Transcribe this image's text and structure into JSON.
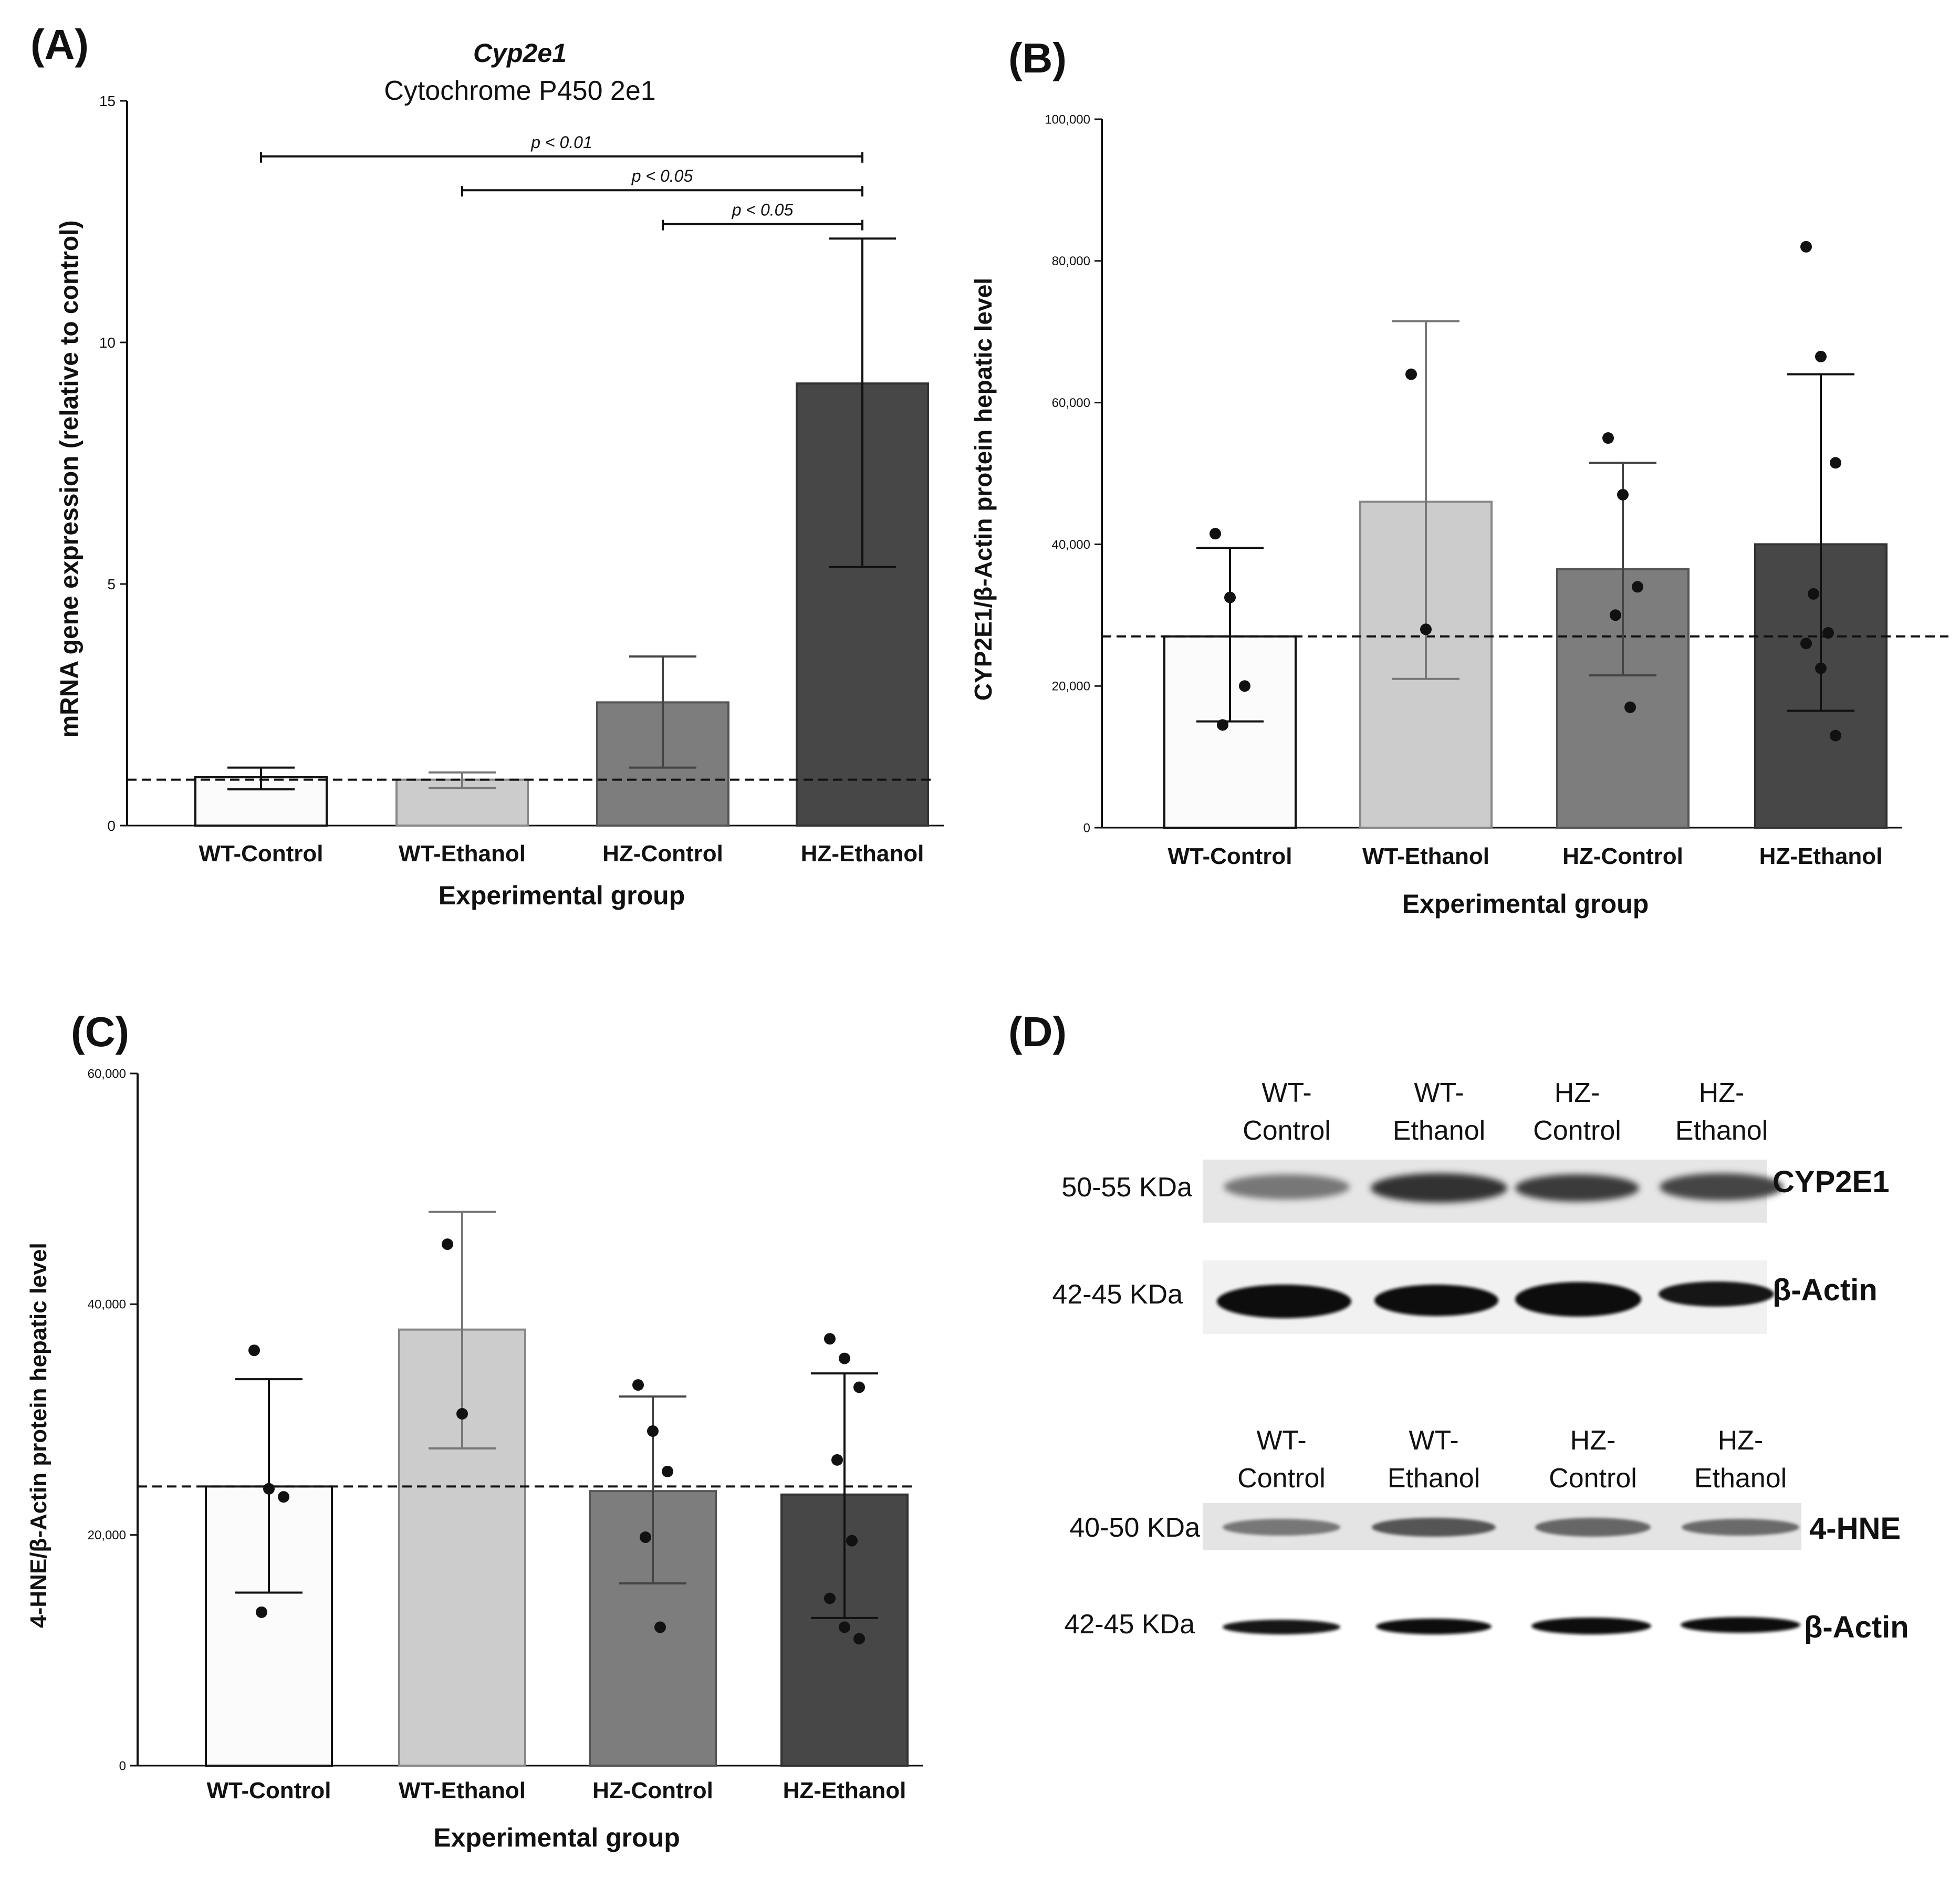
{
  "panels": {
    "A": {
      "label": "(A)"
    },
    "B": {
      "label": "(B)"
    },
    "C": {
      "label": "(C)"
    },
    "D": {
      "label": "(D)"
    }
  },
  "colors": {
    "wt_control": "#fbfbfb",
    "wt_ethanol": "#cccccc",
    "hz_control": "#7d7d7d",
    "hz_ethanol": "#474747",
    "axis": "#111111"
  },
  "chart_data": [
    {
      "id": "A",
      "type": "bar",
      "title_italic": "Cyp2e1",
      "title": "Cytochrome P450 2e1",
      "xlabel": "Experimental group",
      "ylabel": "mRNA gene expression (relative to control)",
      "categories": [
        "WT-Control",
        "WT-Ethanol",
        "HZ-Control",
        "HZ-Ethanol"
      ],
      "values": [
        1.0,
        0.95,
        2.55,
        9.15
      ],
      "err_low": [
        0.75,
        0.78,
        1.2,
        5.35
      ],
      "err_high": [
        1.2,
        1.1,
        3.5,
        12.15
      ],
      "ylim": [
        0,
        15
      ],
      "yticks": [
        0,
        5,
        10,
        15
      ],
      "ytick_labels": [
        "0",
        "5",
        "10",
        "15"
      ],
      "reference_line": 0.95,
      "significance": [
        {
          "from": 0,
          "to": 3,
          "y": 13.85,
          "label": "p < 0.01"
        },
        {
          "from": 1,
          "to": 3,
          "y": 13.15,
          "label": "p < 0.05"
        },
        {
          "from": 2,
          "to": 3,
          "y": 12.45,
          "label": "p < 0.05"
        }
      ]
    },
    {
      "id": "B",
      "type": "bar",
      "xlabel": "Experimental group",
      "ylabel": "CYP2E1/β-Actin protein hepatic level",
      "categories": [
        "WT-Control",
        "WT-Ethanol",
        "HZ-Control",
        "HZ-Ethanol"
      ],
      "values": [
        27000,
        46000,
        36500,
        40000
      ],
      "err_low": [
        15000,
        21000,
        21500,
        16500
      ],
      "err_high": [
        39500,
        71500,
        51500,
        64000
      ],
      "points": [
        [
          41500,
          32500,
          20000,
          14500
        ],
        [
          64000,
          28000
        ],
        [
          55000,
          47000,
          34000,
          30000,
          17000
        ],
        [
          82000,
          66500,
          51500,
          33000,
          27500,
          26000,
          22500,
          13000
        ]
      ],
      "ylim": [
        0,
        100000
      ],
      "yticks": [
        0,
        20000,
        40000,
        60000,
        80000,
        100000
      ],
      "ytick_labels": [
        "0",
        "20,000",
        "40,000",
        "60,000",
        "80,000",
        "100,000"
      ],
      "reference_line": 27000
    },
    {
      "id": "C",
      "type": "bar",
      "xlabel": "Experimental group",
      "ylabel": "4-HNE/β-Actin protein hepatic level",
      "categories": [
        "WT-Control",
        "WT-Ethanol",
        "HZ-Control",
        "HZ-Ethanol"
      ],
      "values": [
        24200,
        37800,
        23800,
        23500
      ],
      "err_low": [
        15000,
        27500,
        15800,
        12800
      ],
      "err_high": [
        33500,
        48000,
        32000,
        34000
      ],
      "points": [
        [
          36000,
          24000,
          23300,
          13300
        ],
        [
          45200,
          30500
        ],
        [
          33000,
          29000,
          25500,
          19800,
          12000
        ],
        [
          37000,
          35300,
          32800,
          26500,
          19500,
          14500,
          12000,
          11000
        ]
      ],
      "ylim": [
        0,
        60000
      ],
      "yticks": [
        0,
        20000,
        40000,
        60000
      ],
      "ytick_labels": [
        "0",
        "20,000",
        "40,000",
        "60,000"
      ],
      "reference_line": 24200
    }
  ],
  "blot": {
    "upper": {
      "lanes": [
        [
          "WT-",
          "Control"
        ],
        [
          "WT-",
          "Ethanol"
        ],
        [
          "HZ-",
          "Control"
        ],
        [
          "HZ-",
          "Ethanol"
        ]
      ],
      "rows": [
        {
          "size": "50-55 KDa",
          "protein": "CYP2E1"
        },
        {
          "size": "42-45 KDa",
          "protein": "β-Actin"
        }
      ]
    },
    "lower": {
      "lanes": [
        [
          "WT-",
          "Control"
        ],
        [
          "WT-",
          "Ethanol"
        ],
        [
          "HZ-",
          "Control"
        ],
        [
          "HZ-",
          "Ethanol"
        ]
      ],
      "rows": [
        {
          "size": "40-50 KDa",
          "protein": "4-HNE"
        },
        {
          "size": "42-45 KDa",
          "protein": "β-Actin"
        }
      ]
    }
  }
}
